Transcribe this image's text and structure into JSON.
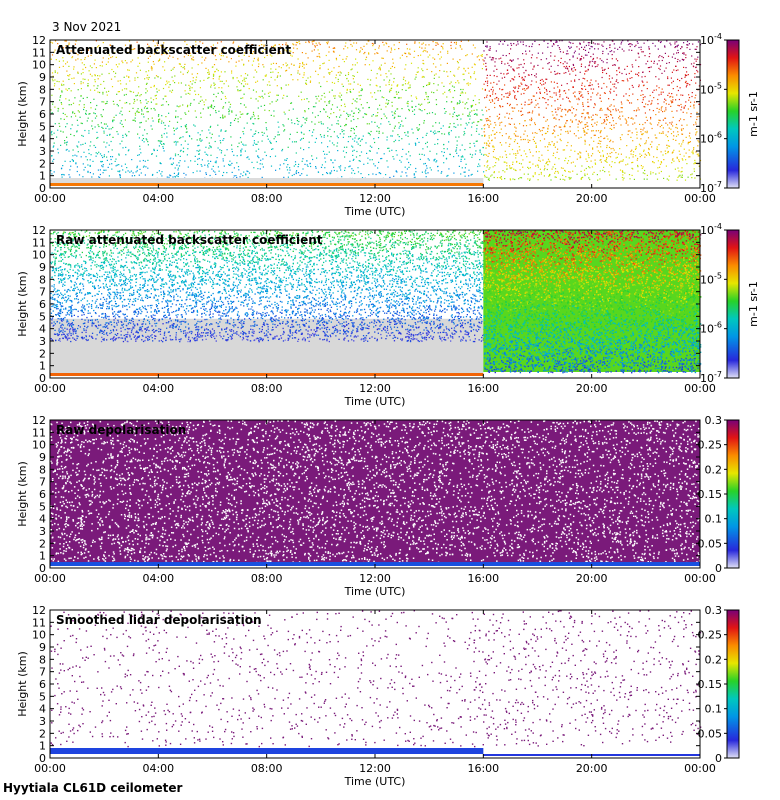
{
  "header": {
    "date": "3 Nov 2021"
  },
  "footer": {
    "site_label": "Hyytiala CL61D ceilometer"
  },
  "chart_data": [
    {
      "type": "heatmap",
      "title": "Attenuated backscatter coefficient",
      "xlabel": "Time (UTC)",
      "ylabel": "Height (km)",
      "x_ticks": [
        "00:00",
        "04:00",
        "08:00",
        "12:00",
        "16:00",
        "20:00",
        "00:00"
      ],
      "y_ticks": [
        0,
        1,
        2,
        3,
        4,
        5,
        6,
        7,
        8,
        9,
        10,
        11,
        12
      ],
      "ylim": [
        0,
        12
      ],
      "colorbar": {
        "scale": "log",
        "range": [
          1e-07,
          0.0001
        ],
        "unit_label": "m-1 sr-1",
        "ticks": [
          {
            "value": 0.0001,
            "base": "10",
            "exp": "-4"
          },
          {
            "value": 1e-05,
            "base": "10",
            "exp": "-5"
          },
          {
            "value": 1e-06,
            "base": "10",
            "exp": "-6"
          },
          {
            "value": 1e-07,
            "base": "10",
            "exp": "-7"
          }
        ]
      }
    },
    {
      "type": "heatmap",
      "title": "Raw attenuated backscatter coefficient",
      "xlabel": "Time (UTC)",
      "ylabel": "Height (km)",
      "x_ticks": [
        "00:00",
        "04:00",
        "08:00",
        "12:00",
        "16:00",
        "20:00",
        "00:00"
      ],
      "y_ticks": [
        0,
        1,
        2,
        3,
        4,
        5,
        6,
        7,
        8,
        9,
        10,
        11,
        12
      ],
      "ylim": [
        0,
        12
      ],
      "colorbar": {
        "scale": "log",
        "range": [
          1e-07,
          0.0001
        ],
        "unit_label": "m-1 sr-1",
        "ticks": [
          {
            "value": 0.0001,
            "base": "10",
            "exp": "-4"
          },
          {
            "value": 1e-05,
            "base": "10",
            "exp": "-5"
          },
          {
            "value": 1e-06,
            "base": "10",
            "exp": "-6"
          },
          {
            "value": 1e-07,
            "base": "10",
            "exp": "-7"
          }
        ]
      }
    },
    {
      "type": "heatmap",
      "title": "Raw depolarisation",
      "xlabel": "Time (UTC)",
      "ylabel": "Height (km)",
      "x_ticks": [
        "00:00",
        "04:00",
        "08:00",
        "12:00",
        "16:00",
        "20:00",
        "00:00"
      ],
      "y_ticks": [
        0,
        1,
        2,
        3,
        4,
        5,
        6,
        7,
        8,
        9,
        10,
        11,
        12
      ],
      "ylim": [
        0,
        12
      ],
      "colorbar": {
        "scale": "linear",
        "range": [
          0,
          0.3
        ],
        "unit_label": "",
        "ticks": [
          {
            "value": 0.3,
            "label": "0.3"
          },
          {
            "value": 0.25,
            "label": "0.25"
          },
          {
            "value": 0.2,
            "label": "0.2"
          },
          {
            "value": 0.15,
            "label": "0.15"
          },
          {
            "value": 0.1,
            "label": "0.1"
          },
          {
            "value": 0.05,
            "label": "0.05"
          },
          {
            "value": 0,
            "label": "0"
          }
        ]
      }
    },
    {
      "type": "heatmap",
      "title": "Smoothed lidar depolarisation",
      "xlabel": "Time (UTC)",
      "ylabel": "Height (km)",
      "x_ticks": [
        "00:00",
        "04:00",
        "08:00",
        "12:00",
        "16:00",
        "20:00",
        "00:00"
      ],
      "y_ticks": [
        0,
        1,
        2,
        3,
        4,
        5,
        6,
        7,
        8,
        9,
        10,
        11,
        12
      ],
      "ylim": [
        0,
        12
      ],
      "colorbar": {
        "scale": "linear",
        "range": [
          0,
          0.3
        ],
        "unit_label": "",
        "ticks": [
          {
            "value": 0.3,
            "label": "0.3"
          },
          {
            "value": 0.25,
            "label": "0.25"
          },
          {
            "value": 0.2,
            "label": "0.2"
          },
          {
            "value": 0.15,
            "label": "0.15"
          },
          {
            "value": 0.1,
            "label": "0.1"
          },
          {
            "value": 0.05,
            "label": "0.05"
          },
          {
            "value": 0,
            "label": "0"
          }
        ]
      }
    }
  ]
}
